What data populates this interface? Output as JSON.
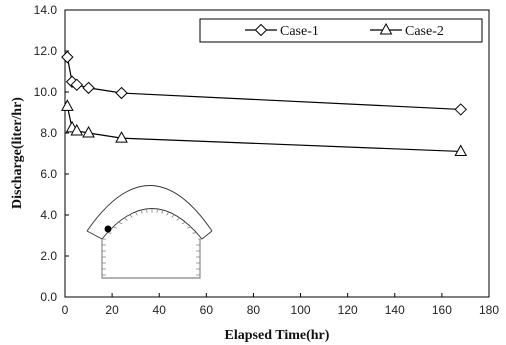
{
  "chart_data": {
    "type": "line",
    "title": "",
    "xlabel": "Elapsed Time(hr)",
    "ylabel": "Discharge(liter/hr)",
    "xlim": [
      0,
      180
    ],
    "ylim": [
      0,
      14
    ],
    "xticks": [
      "0",
      "20",
      "40",
      "60",
      "80",
      "100",
      "120",
      "140",
      "160",
      "180"
    ],
    "yticks": [
      "0.0",
      "2.0",
      "4.0",
      "6.0",
      "8.0",
      "10.0",
      "12.0",
      "14.0"
    ],
    "grid": false,
    "legend_position": "top-right",
    "series": [
      {
        "name": "Case-1",
        "marker": "diamond",
        "x": [
          1,
          3,
          5,
          10,
          24,
          168
        ],
        "y": [
          11.7,
          10.5,
          10.35,
          10.2,
          9.95,
          9.15
        ]
      },
      {
        "name": "Case-2",
        "marker": "triangle",
        "x": [
          1,
          3,
          5,
          10,
          24,
          168
        ],
        "y": [
          9.3,
          8.25,
          8.1,
          8.0,
          7.75,
          7.1
        ]
      }
    ],
    "colors": {
      "line": "#000000",
      "marker_fill": "#ffffff",
      "frame": "#000000"
    }
  }
}
